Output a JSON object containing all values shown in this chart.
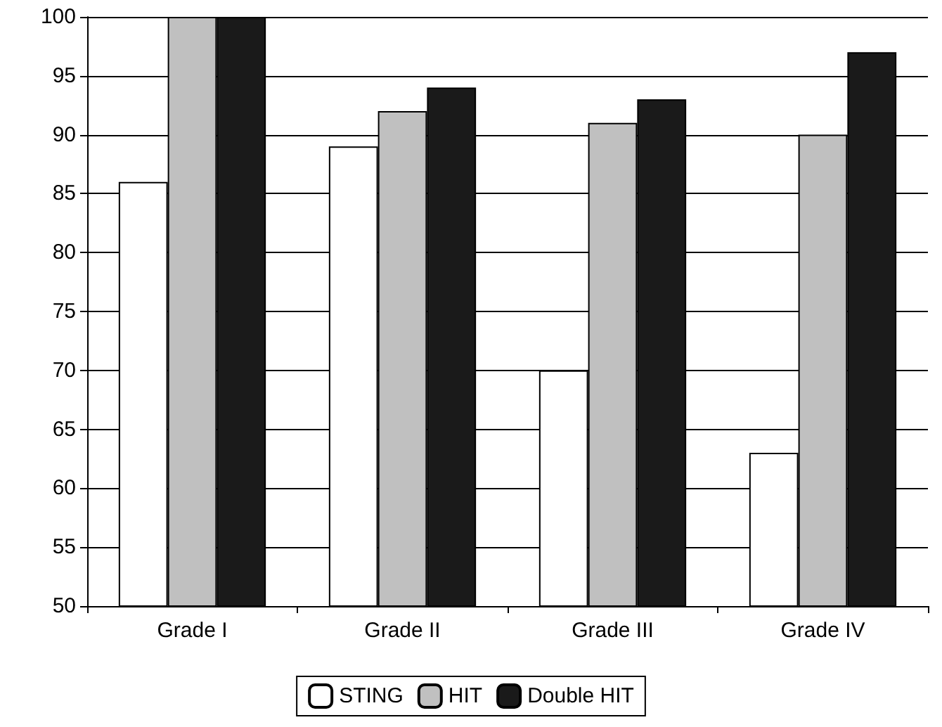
{
  "chart_data": {
    "type": "bar",
    "categories": [
      "Grade I",
      "Grade II",
      "Grade III",
      "Grade IV"
    ],
    "series": [
      {
        "name": "STING",
        "color": "#ffffff",
        "values": [
          86,
          89,
          70,
          63
        ]
      },
      {
        "name": "HIT",
        "color": "#c0c0c0",
        "values": [
          100,
          92,
          91,
          90
        ]
      },
      {
        "name": "Double HIT",
        "color": "#1a1a1a",
        "values": [
          100,
          94,
          93,
          97
        ]
      }
    ],
    "ylim": [
      50,
      100
    ],
    "yticks": [
      50,
      55,
      60,
      65,
      70,
      75,
      80,
      85,
      90,
      95,
      100
    ],
    "grid": "y",
    "legend": "bottom"
  }
}
